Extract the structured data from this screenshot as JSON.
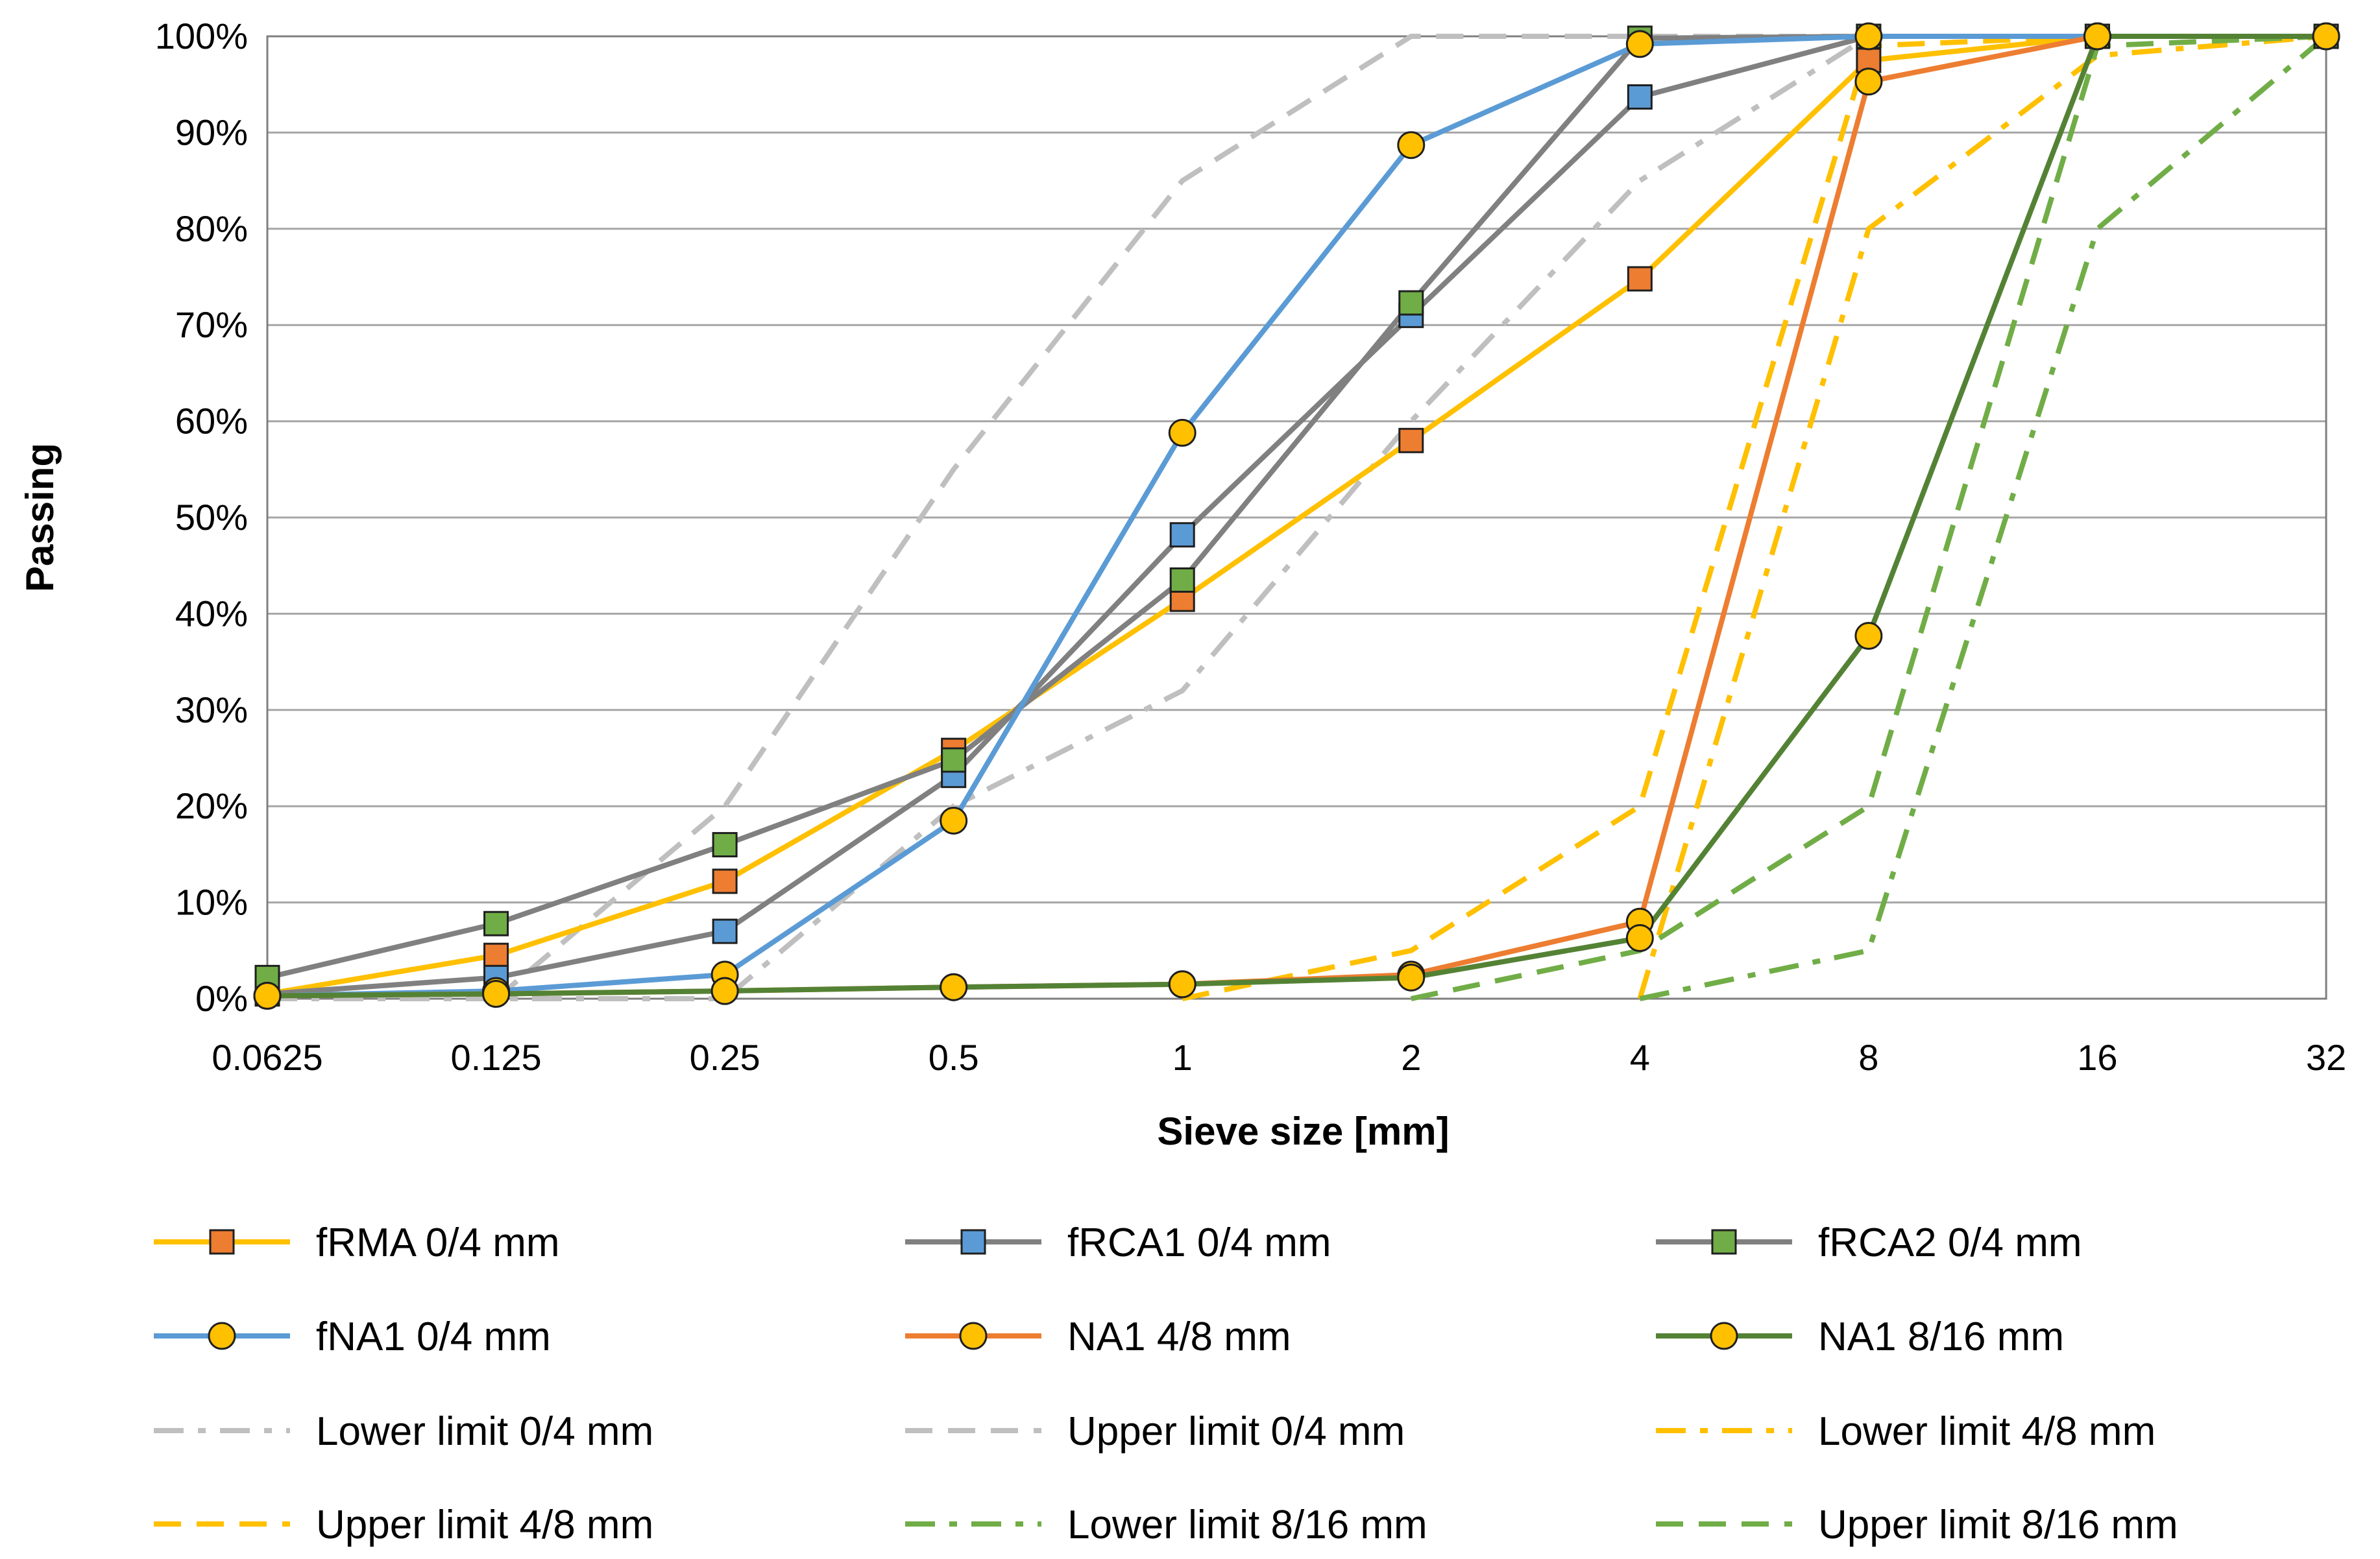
{
  "chart_data": {
    "type": "line",
    "title": "",
    "xlabel": "Sieve size [mm]",
    "ylabel": "Passing",
    "x_scale": "log2",
    "x": [
      0.0625,
      0.125,
      0.25,
      0.5,
      1,
      2,
      4,
      8,
      16,
      32
    ],
    "x_tick_labels": [
      "0.0625",
      "0.125",
      "0.25",
      "0.5",
      "1",
      "2",
      "4",
      "8",
      "16",
      "32"
    ],
    "y_ticks": [
      0,
      10,
      20,
      30,
      40,
      50,
      60,
      70,
      80,
      90,
      100
    ],
    "y_tick_labels": [
      "0%",
      "10%",
      "20%",
      "30%",
      "40%",
      "50%",
      "60%",
      "70%",
      "80%",
      "90%",
      "100%"
    ],
    "ylim": [
      0,
      100
    ],
    "grid": "horizontal",
    "legend_position": "bottom",
    "series": [
      {
        "name": "fRMA 0/4 mm",
        "color": "#FFC000",
        "marker": "square",
        "marker_fill": "#ED7D31",
        "dash": "solid",
        "values": [
          0.5,
          4.5,
          12.2,
          25.8,
          41.5,
          58,
          74.8,
          97.5,
          100,
          100
        ]
      },
      {
        "name": "fRCA1 0/4 mm",
        "color": "#808080",
        "marker": "square",
        "marker_fill": "#5B9BD5",
        "dash": "solid",
        "values": [
          0.5,
          2.2,
          7,
          23.2,
          48.2,
          71,
          93.7,
          100,
          100,
          100
        ]
      },
      {
        "name": "fRCA2 0/4 mm",
        "color": "#808080",
        "marker": "square",
        "marker_fill": "#70AD47",
        "dash": "solid",
        "values": [
          2.2,
          7.8,
          16,
          24.8,
          43.5,
          72.3,
          99.8,
          100,
          100,
          100
        ]
      },
      {
        "name": "fNA1 0/4 mm",
        "color": "#5B9BD5",
        "marker": "circle",
        "marker_fill": "#FFC000",
        "dash": "solid",
        "values": [
          0.3,
          0.8,
          2.5,
          18.5,
          58.8,
          88.7,
          99.2,
          100,
          100,
          100
        ]
      },
      {
        "name": "NA1 4/8 mm",
        "color": "#ED7D31",
        "marker": "circle",
        "marker_fill": "#FFC000",
        "dash": "solid",
        "values": [
          0.3,
          0.5,
          0.8,
          1.2,
          1.5,
          2.5,
          8,
          95.3,
          100,
          100
        ]
      },
      {
        "name": "NA1 8/16 mm",
        "color": "#548235",
        "marker": "circle",
        "marker_fill": "#FFC000",
        "dash": "solid",
        "values": [
          0.3,
          0.5,
          0.8,
          1.2,
          1.5,
          2.2,
          6.3,
          37.7,
          100,
          100
        ]
      },
      {
        "name": "Lower limit 0/4 mm",
        "color": "#BFBFBF",
        "marker": "none",
        "dash": "dashdot",
        "values": [
          0,
          0,
          0,
          20,
          32,
          60,
          85,
          100,
          100,
          100
        ]
      },
      {
        "name": "Upper limit 0/4 mm",
        "color": "#BFBFBF",
        "marker": "none",
        "dash": "dash",
        "values": [
          null,
          0,
          20,
          55,
          85,
          100,
          100,
          100,
          100,
          100
        ]
      },
      {
        "name": "Lower limit 4/8 mm",
        "color": "#FFC000",
        "marker": "none",
        "dash": "dashdot",
        "values": [
          null,
          null,
          null,
          null,
          null,
          null,
          0,
          80,
          98,
          100
        ]
      },
      {
        "name": "Upper limit 4/8 mm",
        "color": "#FFC000",
        "marker": "none",
        "dash": "dash",
        "values": [
          null,
          null,
          null,
          null,
          0,
          5,
          20,
          99,
          100,
          100
        ]
      },
      {
        "name": "Lower limit 8/16 mm",
        "color": "#70AD47",
        "marker": "none",
        "dash": "dashdot",
        "values": [
          null,
          null,
          null,
          null,
          null,
          null,
          0,
          5,
          80,
          100
        ]
      },
      {
        "name": "Upper limit 8/16 mm",
        "color": "#70AD47",
        "marker": "none",
        "dash": "dash",
        "values": [
          null,
          null,
          null,
          null,
          null,
          0,
          5,
          20,
          99,
          100
        ]
      }
    ]
  }
}
